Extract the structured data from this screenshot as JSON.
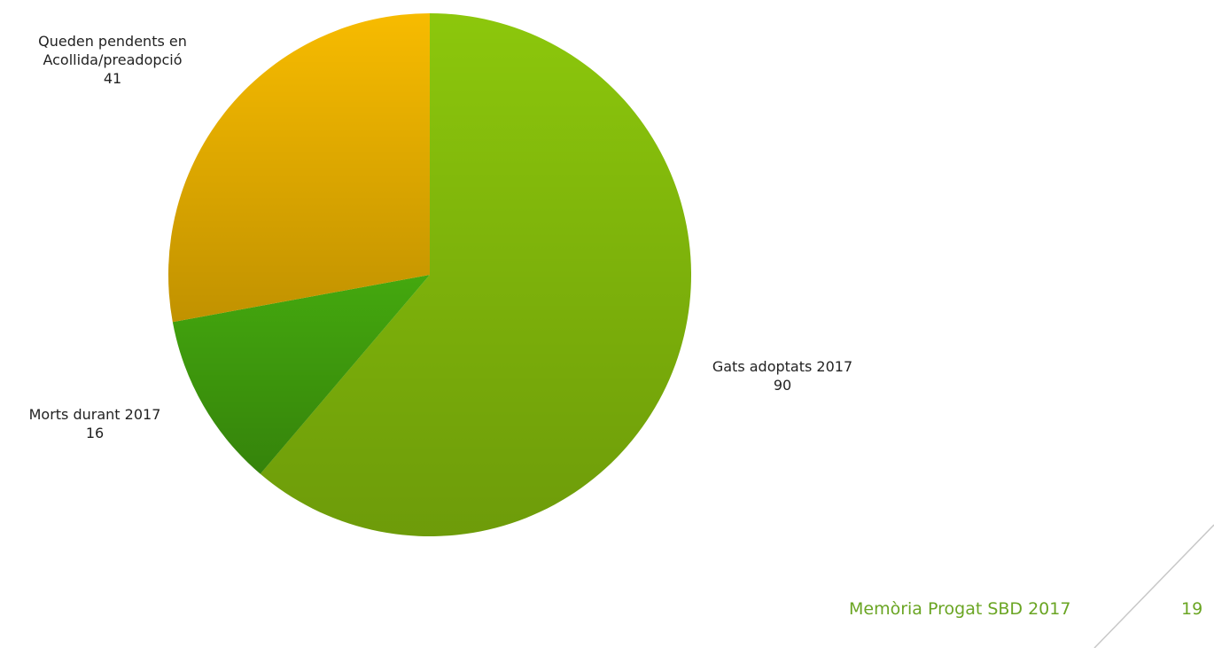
{
  "chart_data": {
    "type": "pie",
    "categories": [
      "Gats adoptats 2017",
      "Morts durant 2017",
      "Queden pendents en Acollida/preadopció"
    ],
    "values": [
      90,
      16,
      41
    ],
    "colors": [
      "#8cc70c",
      "#44a80e",
      "#f7bb00"
    ]
  },
  "footer": {
    "title": "Memòria Progat SBD 2017",
    "page": "19"
  }
}
